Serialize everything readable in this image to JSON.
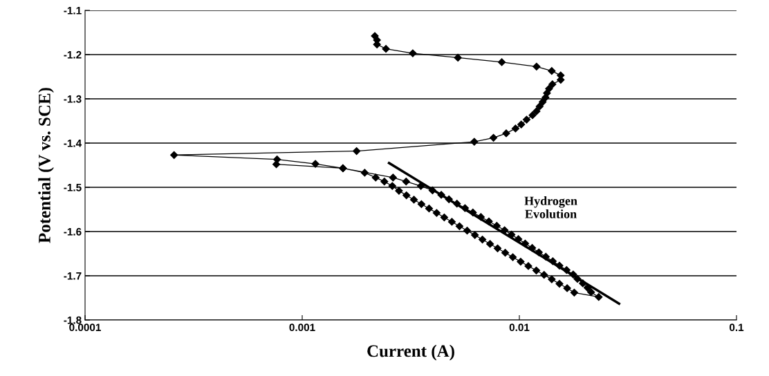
{
  "chart_data": {
    "type": "line",
    "xlabel": "Current (A)",
    "ylabel": "Potential (V vs. SCE)",
    "log": "x",
    "xlim": [
      0.0001,
      0.1
    ],
    "xticks": [
      0.0001,
      0.001,
      0.01,
      0.1
    ],
    "ylim": [
      -1.8,
      -1.1
    ],
    "yticks": [
      -1.8,
      -1.7,
      -1.6,
      -1.5,
      -1.4,
      -1.3,
      -1.2,
      -1.1
    ],
    "grid": "y",
    "legend": false,
    "series": [
      {
        "color": "#000000",
        "marker": "diamond",
        "x": [
          0.00216,
          0.00221,
          0.00221,
          0.00243,
          0.00323,
          0.00521,
          0.0083,
          0.012,
          0.0141,
          0.0155,
          0.0155,
          0.0142,
          0.0137,
          0.0134,
          0.0132,
          0.0128,
          0.0124,
          0.012,
          0.0115,
          0.0108,
          0.0102,
          0.0096,
          0.0087,
          0.0076,
          0.0062,
          0.00178,
          0.000257,
          0.000766,
          0.00115,
          0.00154,
          0.00262,
          0.00301,
          0.00352,
          0.00398,
          0.00437,
          0.00474,
          0.00516,
          0.00562,
          0.00611,
          0.00665,
          0.00724,
          0.00787,
          0.00855,
          0.0092,
          0.0099,
          0.01064,
          0.01146,
          0.0123,
          0.01324,
          0.01426,
          0.0153,
          0.0165,
          0.0177,
          0.0185,
          0.0196,
          0.0206,
          0.0214,
          0.0232,
          0.0179,
          0.0166,
          0.0153,
          0.0141,
          0.013,
          0.01197,
          0.011,
          0.01014,
          0.00933,
          0.00861,
          0.00794,
          0.00733,
          0.00676,
          0.00624,
          0.00575,
          0.0053,
          0.00489,
          0.00451,
          0.00416,
          0.00384,
          0.00354,
          0.00327,
          0.00302,
          0.00279,
          0.0026,
          0.00239,
          0.00218,
          0.00194,
          0.00154,
          0.00076
        ],
        "values": [
          -1.158,
          -1.167,
          -1.177,
          -1.187,
          -1.197,
          -1.207,
          -1.217,
          -1.227,
          -1.237,
          -1.247,
          -1.257,
          -1.267,
          -1.277,
          -1.287,
          -1.297,
          -1.307,
          -1.317,
          -1.328,
          -1.337,
          -1.347,
          -1.358,
          -1.367,
          -1.378,
          -1.388,
          -1.397,
          -1.418,
          -1.427,
          -1.437,
          -1.447,
          -1.457,
          -1.478,
          -1.487,
          -1.497,
          -1.507,
          -1.517,
          -1.527,
          -1.537,
          -1.547,
          -1.557,
          -1.567,
          -1.577,
          -1.587,
          -1.597,
          -1.607,
          -1.617,
          -1.627,
          -1.637,
          -1.647,
          -1.657,
          -1.667,
          -1.677,
          -1.687,
          -1.697,
          -1.707,
          -1.717,
          -1.727,
          -1.737,
          -1.748,
          -1.738,
          -1.728,
          -1.718,
          -1.708,
          -1.698,
          -1.688,
          -1.678,
          -1.668,
          -1.658,
          -1.648,
          -1.638,
          -1.628,
          -1.618,
          -1.608,
          -1.598,
          -1.588,
          -1.578,
          -1.568,
          -1.558,
          -1.548,
          -1.538,
          -1.528,
          -1.518,
          -1.508,
          -1.497,
          -1.487,
          -1.478,
          -1.467,
          -1.457,
          -1.448
        ]
      },
      {
        "color": "#000000",
        "marker": "none",
        "x": [
          0.00251,
          0.0288
        ],
        "values": [
          -1.445,
          -1.763
        ]
      }
    ],
    "annotations": [
      "Hydrogen\nEvolution"
    ]
  }
}
